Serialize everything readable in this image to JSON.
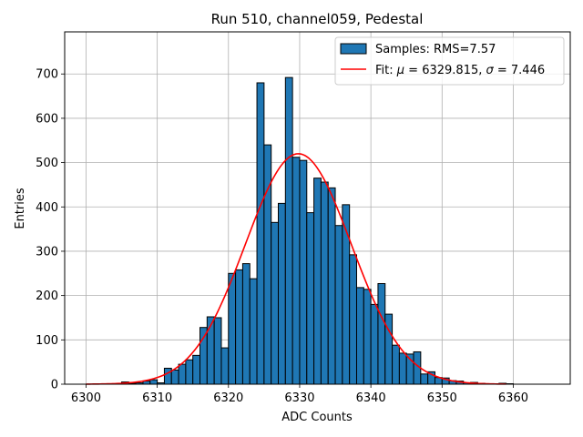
{
  "chart_data": {
    "type": "bar",
    "title": "Run 510, channel059, Pedestal",
    "xlabel": "ADC Counts",
    "ylabel": "Entries",
    "xlim": [
      6297,
      6368
    ],
    "ylim": [
      0,
      795
    ],
    "grid": true,
    "legend_position": "top-right",
    "x_ticks": [
      6300,
      6310,
      6320,
      6330,
      6340,
      6350,
      6360
    ],
    "y_ticks": [
      0,
      100,
      200,
      300,
      400,
      500,
      600,
      700
    ],
    "bin_width": 1,
    "histogram": {
      "name": "Samples: RMS=7.57",
      "color": "#1f77b4",
      "bin_starts": [
        6300,
        6301,
        6302,
        6303,
        6304,
        6305,
        6306,
        6307,
        6308,
        6309,
        6310,
        6311,
        6312,
        6313,
        6314,
        6315,
        6316,
        6317,
        6318,
        6319,
        6320,
        6321,
        6322,
        6323,
        6324,
        6325,
        6326,
        6327,
        6328,
        6329,
        6330,
        6331,
        6332,
        6333,
        6334,
        6335,
        6336,
        6337,
        6338,
        6339,
        6340,
        6341,
        6342,
        6343,
        6344,
        6345,
        6346,
        6347,
        6348,
        6349,
        6350,
        6351,
        6352,
        6353,
        6354,
        6355,
        6356,
        6357,
        6358,
        6359
      ],
      "counts": [
        0,
        0,
        1,
        0,
        0,
        5,
        2,
        3,
        7,
        10,
        3,
        36,
        32,
        45,
        55,
        65,
        128,
        152,
        150,
        82,
        250,
        258,
        272,
        238,
        680,
        540,
        365,
        408,
        692,
        512,
        505,
        387,
        465,
        456,
        443,
        358,
        405,
        292,
        218,
        214,
        180,
        227,
        158,
        88,
        70,
        68,
        73,
        23,
        28,
        15,
        14,
        8,
        7,
        3,
        4,
        2,
        1,
        1,
        2,
        1
      ]
    },
    "fit": {
      "name_prefix": "Fit: ",
      "mu_symbol": "μ",
      "mu_text": " = 6329.815, ",
      "sigma_symbol": "σ",
      "sigma_text": " = 7.446",
      "mu": 6329.815,
      "sigma": 7.446,
      "amplitude": 520,
      "color": "#ff0000",
      "x_range": [
        6300,
        6359
      ]
    }
  }
}
